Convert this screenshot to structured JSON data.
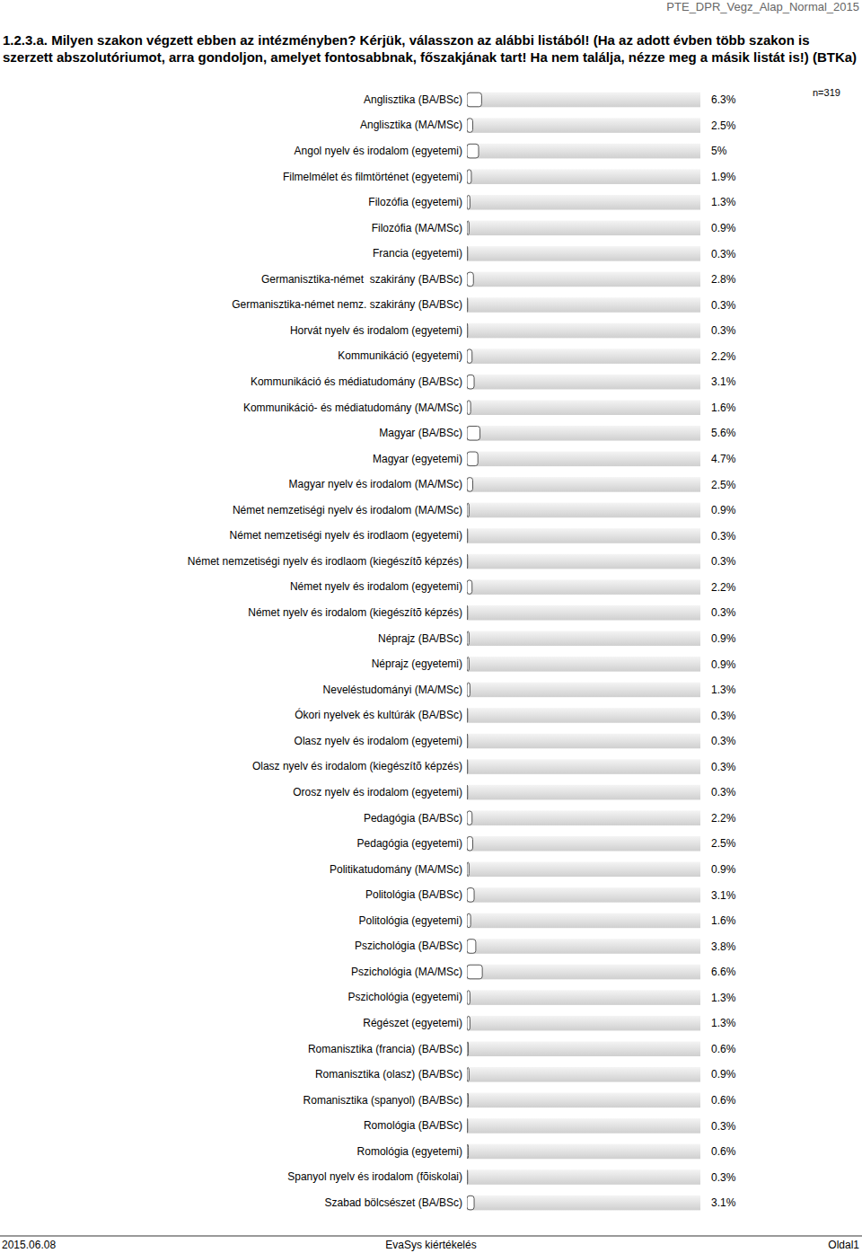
{
  "chart_data": {
    "type": "bar",
    "orientation": "horizontal",
    "title": "1.2.3.a. Milyen szakon végzett ebben az intézményben? Kérjük, válasszon az alábbi listából! (Ha az adott évben több szakon is szerzett abszolutóriumot, arra gondoljon, amelyet fontosabbnak, főszakjának tart! Ha nem találja, nézze meg a másik listát is!) (BTKa)",
    "annotations": [
      "PTE_DPR_Vegz_Alap_Normal_2015",
      "n=319",
      "2015.06.08",
      "EvaSys kiértékelés",
      "Oldal1"
    ],
    "categories": [
      "Anglisztika (BA/BSc)",
      "Anglisztika (MA/MSc)",
      "Angol nyelv és irodalom (egyetemi)",
      "Filmelmélet és filmtörténet (egyetemi)",
      "Filozófia (egyetemi)",
      "Filozófia (MA/MSc)",
      "Francia (egyetemi)",
      "Germanisztika-német  szakirány (BA/BSc)",
      "Germanisztika-német nemz. szakirány (BA/BSc)",
      "Horvát nyelv és irodalom (egyetemi)",
      "Kommunikáció (egyetemi)",
      "Kommunikáció és médiatudomány (BA/BSc)",
      "Kommunikáció- és médiatudomány (MA/MSc)",
      "Magyar (BA/BSc)",
      "Magyar (egyetemi)",
      "Magyar nyelv és irodalom (MA/MSc)",
      "Német nemzetiségi nyelv és irodalom (MA/MSc)",
      "Német nemzetiségi nyelv és irodlaom (egyetemi)",
      "Német nemzetiségi nyelv és irodlaom (kiegészítõ képzés)",
      "Német nyelv és irodalom (egyetemi)",
      "Német nyelv és irodalom (kiegészítõ képzés)",
      "Néprajz (BA/BSc)",
      "Néprajz (egyetemi)",
      "Neveléstudományi (MA/MSc)",
      "Ókori nyelvek és kultúrák (BA/BSc)",
      "Olasz nyelv és irodalom (egyetemi)",
      "Olasz nyelv és irodalom (kiegészítõ képzés)",
      "Orosz nyelv és irodalom (egyetemi)",
      "Pedagógia (BA/BSc)",
      "Pedagógia (egyetemi)",
      "Politikatudomány (MA/MSc)",
      "Politológia (BA/BSc)",
      "Politológia (egyetemi)",
      "Pszichológia (BA/BSc)",
      "Pszichológia (MA/MSc)",
      "Pszichológia (egyetemi)",
      "Régészet (egyetemi)",
      "Romanisztika (francia) (BA/BSc)",
      "Romanisztika (olasz) (BA/BSc)",
      "Romanisztika (spanyol) (BA/BSc)",
      "Romológia (BA/BSc)",
      "Romológia (egyetemi)",
      "Spanyol nyelv és irodalom (fõiskolai)",
      "Szabad bölcsészet (BA/BSc)"
    ],
    "values": [
      6.3,
      2.5,
      5,
      1.9,
      1.3,
      0.9,
      0.3,
      2.8,
      0.3,
      0.3,
      2.2,
      3.1,
      1.6,
      5.6,
      4.7,
      2.5,
      0.9,
      0.3,
      0.3,
      2.2,
      0.3,
      0.9,
      0.9,
      1.3,
      0.3,
      0.3,
      0.3,
      0.3,
      2.2,
      2.5,
      0.9,
      3.1,
      1.6,
      3.8,
      6.6,
      1.3,
      1.3,
      0.6,
      0.9,
      0.6,
      0.3,
      0.6,
      0.3,
      3.1
    ],
    "value_labels": [
      "6.3%",
      "2.5%",
      "5%",
      "1.9%",
      "1.3%",
      "0.9%",
      "0.3%",
      "2.8%",
      "0.3%",
      "0.3%",
      "2.2%",
      "3.1%",
      "1.6%",
      "5.6%",
      "4.7%",
      "2.5%",
      "0.9%",
      "0.3%",
      "0.3%",
      "2.2%",
      "0.3%",
      "0.9%",
      "0.9%",
      "1.3%",
      "0.3%",
      "0.3%",
      "0.3%",
      "0.3%",
      "2.2%",
      "2.5%",
      "0.9%",
      "3.1%",
      "1.6%",
      "3.8%",
      "6.6%",
      "1.3%",
      "1.3%",
      "0.6%",
      "0.9%",
      "0.6%",
      "0.3%",
      "0.6%",
      "0.3%",
      "3.1%"
    ],
    "xlim": [
      0,
      100
    ],
    "data_labels": true,
    "tick_labels": "y",
    "color": "#ffffff"
  }
}
